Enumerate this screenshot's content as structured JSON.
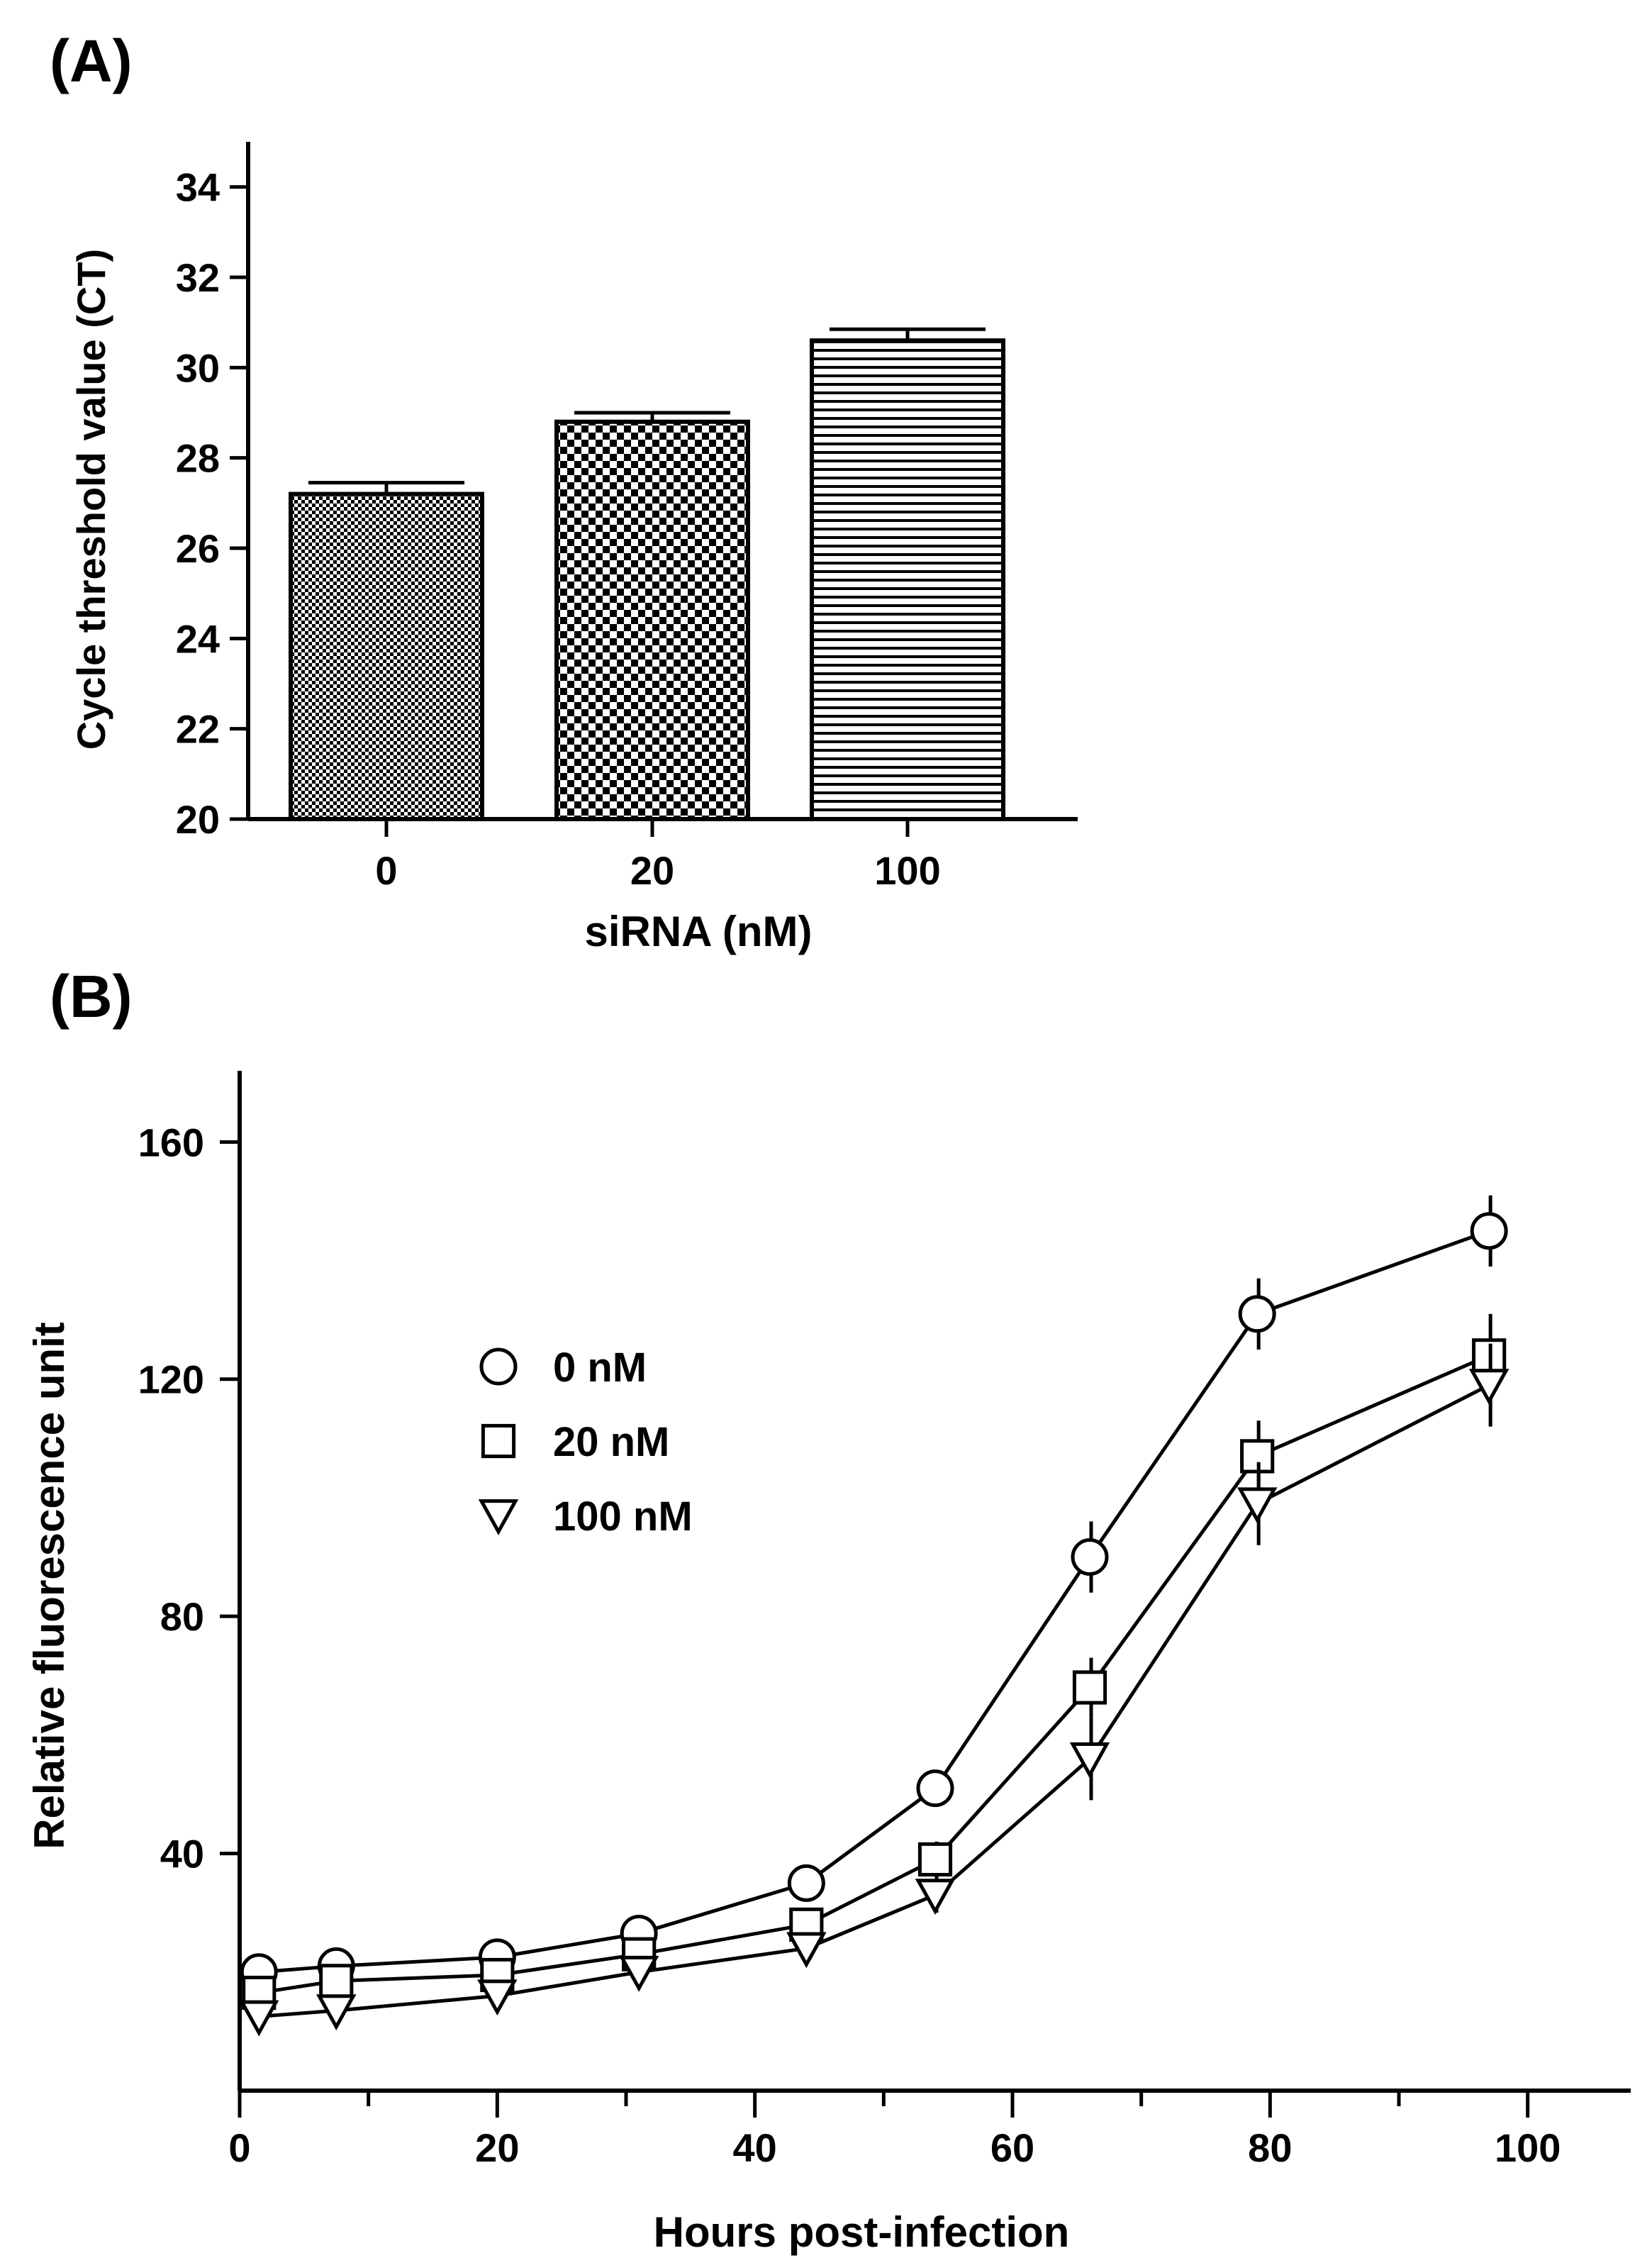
{
  "chart_data": [
    {
      "type": "bar",
      "panel_label": "(A)",
      "categories": [
        "0",
        "20",
        "100"
      ],
      "values": [
        27.2,
        28.8,
        30.6
      ],
      "errors": [
        0.25,
        0.2,
        0.25
      ],
      "fill_patterns": [
        "fine-checker",
        "coarse-checker",
        "horizontal-stripes"
      ],
      "xlabel": "siRNA (nM)",
      "ylabel": "Cycle threshold value (CT)",
      "ylim": [
        20,
        35
      ],
      "yticks": [
        20,
        22,
        24,
        26,
        28,
        30,
        32,
        34
      ],
      "grid": false
    },
    {
      "type": "line",
      "panel_label": "(B)",
      "xlabel": "Hours post-infection",
      "ylabel": "Relative fluorescence unit",
      "xlim": [
        0,
        108
      ],
      "ylim": [
        0,
        172
      ],
      "xticks": [
        0,
        20,
        40,
        60,
        80,
        100
      ],
      "yticks": [
        40,
        80,
        120,
        160
      ],
      "legend_position": "upper-left",
      "grid": false,
      "series": [
        {
          "name": "0 nM",
          "marker": "circle",
          "x": [
            1.5,
            7.5,
            20,
            31,
            44,
            54,
            66,
            79,
            97
          ],
          "y": [
            20,
            21,
            22.5,
            26.5,
            35,
            51,
            90,
            131,
            145
          ],
          "err": [
            2,
            2,
            2,
            2,
            2,
            2,
            6,
            6,
            6
          ]
        },
        {
          "name": "20 nM",
          "marker": "square",
          "x": [
            1.5,
            7.5,
            20,
            31,
            44,
            54,
            66,
            79,
            97
          ],
          "y": [
            16.5,
            18.5,
            19.5,
            23,
            28,
            39,
            68,
            107,
            124
          ],
          "err": [
            2,
            2,
            2,
            2,
            2,
            3,
            5,
            6,
            7
          ]
        },
        {
          "name": "100 nM",
          "marker": "triangle-down",
          "x": [
            1.5,
            7.5,
            20,
            31,
            44,
            54,
            66,
            79,
            97
          ],
          "y": [
            12.5,
            13.5,
            16,
            20,
            24,
            33,
            56,
            99,
            119
          ],
          "err": [
            2,
            2,
            2,
            2,
            2,
            3,
            7,
            7,
            7
          ]
        }
      ]
    }
  ]
}
